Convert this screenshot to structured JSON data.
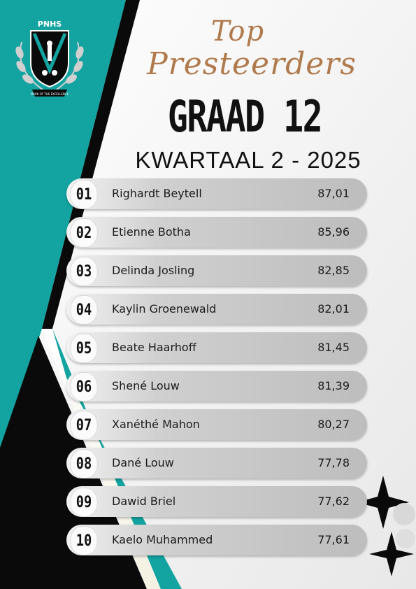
{
  "crest": {
    "acronym": "PNHS",
    "motto": "MARK OF THE EXCELLENCE"
  },
  "heading": {
    "script_line1": "Top",
    "script_line2": "Presteerders",
    "grade": "GRAAD 12",
    "term": "KWARTAAL 2 - 2025"
  },
  "rankings": [
    {
      "rank": "01",
      "name": "Righardt Beytell",
      "score": "87,01"
    },
    {
      "rank": "02",
      "name": "Etienne Botha",
      "score": "85,96"
    },
    {
      "rank": "03",
      "name": "Delinda Josling",
      "score": "82,85"
    },
    {
      "rank": "04",
      "name": "Kaylin Groenewald",
      "score": "82,01"
    },
    {
      "rank": "05",
      "name": "Beate Haarhoff",
      "score": "81,45"
    },
    {
      "rank": "06",
      "name": "Shené Louw",
      "score": "81,39"
    },
    {
      "rank": "07",
      "name": "Xanéthé Mahon",
      "score": "80,27"
    },
    {
      "rank": "08",
      "name": "Dané Louw",
      "score": "77,78"
    },
    {
      "rank": "09",
      "name": "Dawid Briel",
      "score": "77,62"
    },
    {
      "rank": "10",
      "name": "Kaelo Muhammed",
      "score": "77,61"
    }
  ],
  "colors": {
    "teal": "#13a3a0",
    "black": "#0a0a0a",
    "accent_gold": "#b07a4c"
  }
}
